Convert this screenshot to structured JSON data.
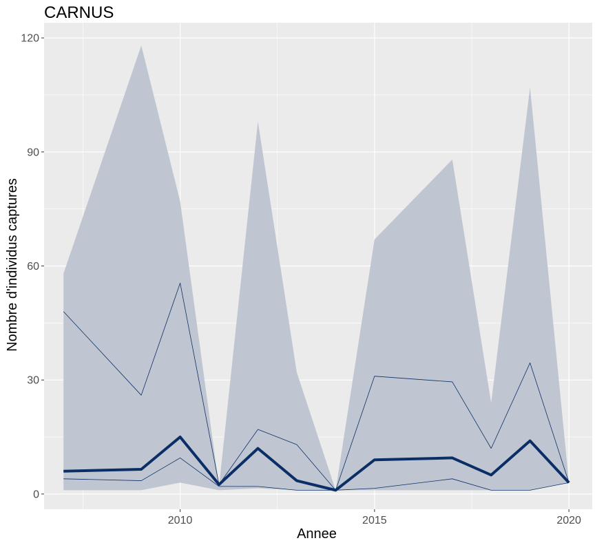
{
  "chart_data": {
    "type": "line",
    "title": "CARNUS",
    "xlabel": "Annee",
    "ylabel": "Nombre d'individus captures",
    "xlim": [
      2006.5,
      2020.6
    ],
    "ylim": [
      -4,
      124
    ],
    "xticks": [
      2010,
      2015,
      2020
    ],
    "xtick_labels": [
      "2010",
      "2015",
      "2020"
    ],
    "yticks": [
      0,
      30,
      60,
      90,
      120
    ],
    "ytick_labels": [
      "0",
      "30",
      "60",
      "90",
      "120"
    ],
    "grid": true,
    "legend": "none",
    "x": [
      2007,
      2009,
      2010,
      2011,
      2012,
      2013,
      2014,
      2015,
      2017,
      2018,
      2019,
      2020
    ],
    "ribbon": {
      "lower": [
        1,
        1,
        3,
        1,
        1.5,
        1,
        1,
        1,
        1,
        1,
        1,
        3
      ],
      "upper": [
        58,
        118,
        77,
        2,
        98,
        32,
        1,
        67,
        88,
        24,
        107,
        3
      ]
    },
    "series": [
      {
        "values": [
          48,
          26,
          55.5,
          2.5,
          17,
          13,
          1,
          31,
          29.5,
          12,
          34.5,
          3
        ],
        "color": "#0b2e66",
        "width": 0.8
      },
      {
        "values": [
          6,
          6.5,
          15,
          2.5,
          12,
          3.5,
          1,
          9,
          9.5,
          5,
          14,
          3
        ],
        "color": "#0b2e66",
        "width": 4
      },
      {
        "values": [
          4,
          3.5,
          9.5,
          2,
          2,
          1,
          1,
          1.5,
          4,
          1,
          1,
          3
        ],
        "color": "#0b2e66",
        "width": 0.8
      }
    ],
    "colors": {
      "panel_bg": "#ebebeb",
      "grid_major": "#ffffff",
      "ribbon_fill": "#bfc6d1",
      "line": "#0b2e66"
    }
  }
}
